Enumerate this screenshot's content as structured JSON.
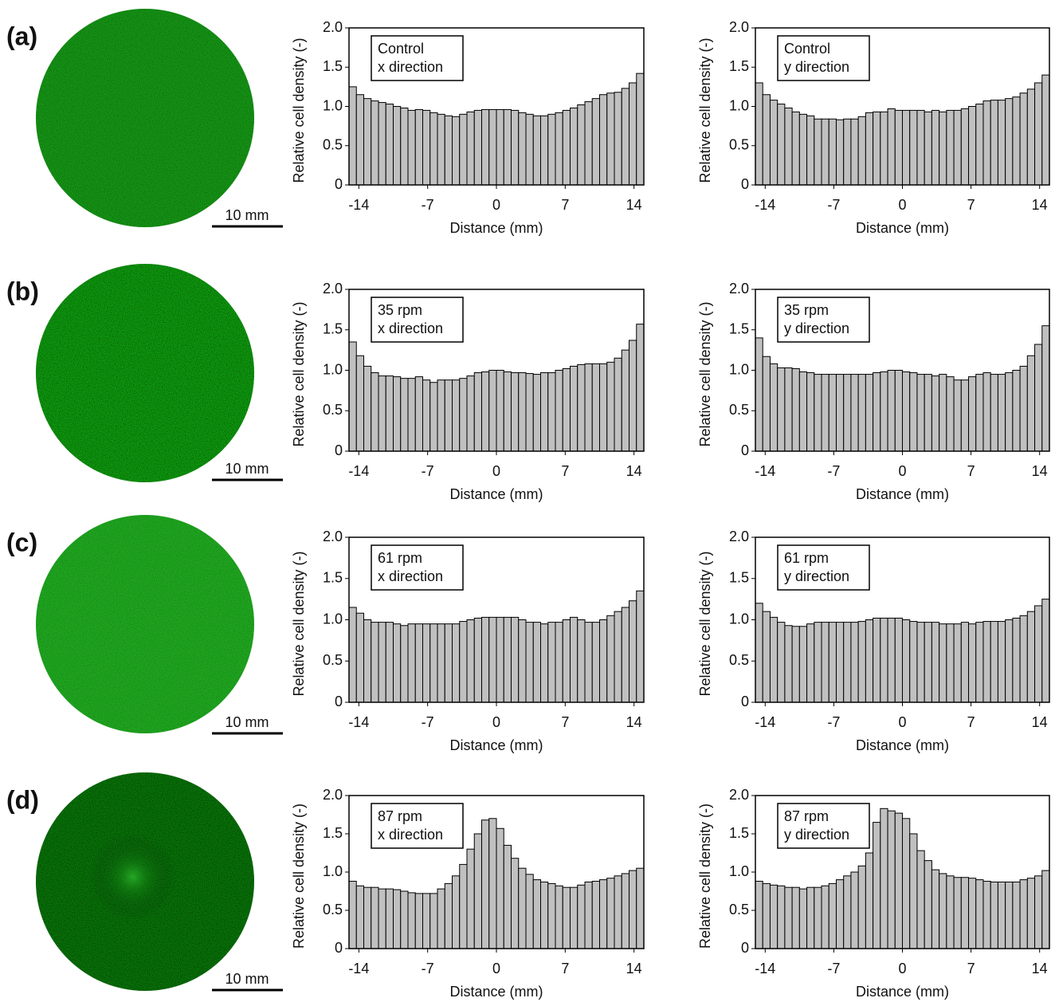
{
  "panels": [
    {
      "label": "(a)",
      "scale_bar": "10 mm"
    },
    {
      "label": "(b)",
      "scale_bar": "10 mm"
    },
    {
      "label": "(c)",
      "scale_bar": "10 mm"
    },
    {
      "label": "(d)",
      "scale_bar": "10 mm"
    }
  ],
  "chart_data": [
    {
      "type": "histogram",
      "annotation": [
        "Control",
        "x direction"
      ],
      "xlabel": "Distance (mm)",
      "ylabel": "Relative cell density (-)",
      "color": "#c0c0c0",
      "bins": [
        -15,
        -14.25,
        -13.5,
        -12.75,
        -12,
        -11.25,
        -10.5,
        -9.75,
        -9,
        -8.25,
        -7.5,
        -6.75,
        -6,
        -5.25,
        -4.5,
        -3.75,
        -3,
        -2.25,
        -1.5,
        -0.75,
        0,
        0.75,
        1.5,
        2.25,
        3,
        3.75,
        4.5,
        5.25,
        6,
        6.75,
        7.5,
        8.25,
        9,
        9.75,
        10.5,
        11.25,
        12,
        12.75,
        13.5,
        14.25,
        15
      ],
      "values": [
        1.25,
        1.15,
        1.1,
        1.07,
        1.05,
        1.03,
        1.0,
        0.98,
        0.95,
        0.96,
        0.95,
        0.92,
        0.9,
        0.88,
        0.87,
        0.9,
        0.93,
        0.95,
        0.96,
        0.96,
        0.96,
        0.96,
        0.95,
        0.92,
        0.9,
        0.88,
        0.88,
        0.9,
        0.92,
        0.95,
        0.98,
        1.02,
        1.06,
        1.1,
        1.15,
        1.17,
        1.18,
        1.23,
        1.3,
        1.42
      ],
      "xlim": [
        -15,
        15
      ],
      "xticks": [
        -14,
        -7,
        0,
        7,
        14
      ],
      "ylim": [
        0,
        2
      ],
      "yticks": [
        0,
        0.5,
        {
          "value": 1,
          "label": "1.0"
        },
        1.5,
        {
          "value": 2,
          "label": "2.0"
        }
      ]
    },
    {
      "type": "histogram",
      "annotation": [
        "Control",
        "y direction"
      ],
      "xlabel": "Distance (mm)",
      "ylabel": "Relative cell density (-)",
      "color": "#c0c0c0",
      "bins": [
        -15,
        -14.25,
        -13.5,
        -12.75,
        -12,
        -11.25,
        -10.5,
        -9.75,
        -9,
        -8.25,
        -7.5,
        -6.75,
        -6,
        -5.25,
        -4.5,
        -3.75,
        -3,
        -2.25,
        -1.5,
        -0.75,
        0,
        0.75,
        1.5,
        2.25,
        3,
        3.75,
        4.5,
        5.25,
        6,
        6.75,
        7.5,
        8.25,
        9,
        9.75,
        10.5,
        11.25,
        12,
        12.75,
        13.5,
        14.25,
        15
      ],
      "values": [
        1.3,
        1.15,
        1.08,
        1.03,
        0.98,
        0.93,
        0.9,
        0.88,
        0.84,
        0.84,
        0.84,
        0.83,
        0.84,
        0.84,
        0.87,
        0.92,
        0.93,
        0.93,
        0.97,
        0.95,
        0.95,
        0.95,
        0.95,
        0.93,
        0.95,
        0.93,
        0.95,
        0.95,
        0.97,
        1.0,
        1.03,
        1.07,
        1.08,
        1.08,
        1.1,
        1.12,
        1.17,
        1.22,
        1.3,
        1.4
      ],
      "xlim": [
        -15,
        15
      ],
      "xticks": [
        -14,
        -7,
        0,
        7,
        14
      ],
      "ylim": [
        0,
        2
      ],
      "yticks": [
        0,
        0.5,
        {
          "value": 1,
          "label": "1.0"
        },
        1.5,
        {
          "value": 2,
          "label": "2.0"
        }
      ]
    },
    {
      "type": "histogram",
      "annotation": [
        "35 rpm",
        "x direction"
      ],
      "xlabel": "Distance (mm)",
      "ylabel": "Relative cell density (-)",
      "color": "#c0c0c0",
      "bins": [
        -15,
        -14.25,
        -13.5,
        -12.75,
        -12,
        -11.25,
        -10.5,
        -9.75,
        -9,
        -8.25,
        -7.5,
        -6.75,
        -6,
        -5.25,
        -4.5,
        -3.75,
        -3,
        -2.25,
        -1.5,
        -0.75,
        0,
        0.75,
        1.5,
        2.25,
        3,
        3.75,
        4.5,
        5.25,
        6,
        6.75,
        7.5,
        8.25,
        9,
        9.75,
        10.5,
        11.25,
        12,
        12.75,
        13.5,
        14.25,
        15
      ],
      "values": [
        1.35,
        1.18,
        1.05,
        0.97,
        0.93,
        0.93,
        0.92,
        0.9,
        0.9,
        0.92,
        0.88,
        0.85,
        0.88,
        0.88,
        0.88,
        0.9,
        0.93,
        0.97,
        0.98,
        1.0,
        1.0,
        0.98,
        0.97,
        0.97,
        0.96,
        0.95,
        0.97,
        0.97,
        1.0,
        1.02,
        1.05,
        1.07,
        1.08,
        1.08,
        1.08,
        1.1,
        1.15,
        1.25,
        1.37,
        1.57
      ],
      "xlim": [
        -15,
        15
      ],
      "xticks": [
        -14,
        -7,
        0,
        7,
        14
      ],
      "ylim": [
        0,
        2
      ],
      "yticks": [
        0,
        0.5,
        {
          "value": 1,
          "label": "1.0"
        },
        1.5,
        {
          "value": 2,
          "label": "2.0"
        }
      ]
    },
    {
      "type": "histogram",
      "annotation": [
        "35 rpm",
        "y direction"
      ],
      "xlabel": "Distance (mm)",
      "ylabel": "Relative cell density (-)",
      "color": "#c0c0c0",
      "bins": [
        -15,
        -14.25,
        -13.5,
        -12.75,
        -12,
        -11.25,
        -10.5,
        -9.75,
        -9,
        -8.25,
        -7.5,
        -6.75,
        -6,
        -5.25,
        -4.5,
        -3.75,
        -3,
        -2.25,
        -1.5,
        -0.75,
        0,
        0.75,
        1.5,
        2.25,
        3,
        3.75,
        4.5,
        5.25,
        6,
        6.75,
        7.5,
        8.25,
        9,
        9.75,
        10.5,
        11.25,
        12,
        12.75,
        13.5,
        14.25,
        15
      ],
      "values": [
        1.4,
        1.17,
        1.08,
        1.03,
        1.03,
        1.02,
        0.98,
        0.97,
        0.95,
        0.95,
        0.95,
        0.95,
        0.95,
        0.95,
        0.95,
        0.95,
        0.97,
        0.98,
        1.0,
        1.0,
        0.98,
        0.97,
        0.95,
        0.95,
        0.93,
        0.95,
        0.92,
        0.88,
        0.88,
        0.92,
        0.95,
        0.97,
        0.95,
        0.95,
        0.97,
        1.0,
        1.05,
        1.18,
        1.32,
        1.55
      ],
      "xlim": [
        -15,
        15
      ],
      "xticks": [
        -14,
        -7,
        0,
        7,
        14
      ],
      "ylim": [
        0,
        2
      ],
      "yticks": [
        0,
        0.5,
        {
          "value": 1,
          "label": "1.0"
        },
        1.5,
        {
          "value": 2,
          "label": "2.0"
        }
      ]
    },
    {
      "type": "histogram",
      "annotation": [
        "61 rpm",
        "x direction"
      ],
      "xlabel": "Distance (mm)",
      "ylabel": "Relative cell density (-)",
      "color": "#c0c0c0",
      "bins": [
        -15,
        -14.25,
        -13.5,
        -12.75,
        -12,
        -11.25,
        -10.5,
        -9.75,
        -9,
        -8.25,
        -7.5,
        -6.75,
        -6,
        -5.25,
        -4.5,
        -3.75,
        -3,
        -2.25,
        -1.5,
        -0.75,
        0,
        0.75,
        1.5,
        2.25,
        3,
        3.75,
        4.5,
        5.25,
        6,
        6.75,
        7.5,
        8.25,
        9,
        9.75,
        10.5,
        11.25,
        12,
        12.75,
        13.5,
        14.25,
        15
      ],
      "values": [
        1.15,
        1.08,
        1.0,
        0.97,
        0.97,
        0.97,
        0.95,
        0.93,
        0.95,
        0.95,
        0.95,
        0.95,
        0.95,
        0.95,
        0.95,
        0.98,
        1.0,
        1.02,
        1.03,
        1.03,
        1.03,
        1.03,
        1.03,
        1.0,
        0.97,
        0.97,
        0.95,
        0.97,
        0.97,
        1.0,
        1.03,
        1.0,
        0.97,
        0.97,
        1.0,
        1.05,
        1.1,
        1.15,
        1.23,
        1.35
      ],
      "xlim": [
        -15,
        15
      ],
      "xticks": [
        -14,
        -7,
        0,
        7,
        14
      ],
      "ylim": [
        0,
        2
      ],
      "yticks": [
        0,
        0.5,
        {
          "value": 1,
          "label": "1.0"
        },
        1.5,
        {
          "value": 2,
          "label": "2.0"
        }
      ]
    },
    {
      "type": "histogram",
      "annotation": [
        "61 rpm",
        "y direction"
      ],
      "xlabel": "Distance (mm)",
      "ylabel": "Relative cell density (-)",
      "color": "#c0c0c0",
      "bins": [
        -15,
        -14.25,
        -13.5,
        -12.75,
        -12,
        -11.25,
        -10.5,
        -9.75,
        -9,
        -8.25,
        -7.5,
        -6.75,
        -6,
        -5.25,
        -4.5,
        -3.75,
        -3,
        -2.25,
        -1.5,
        -0.75,
        0,
        0.75,
        1.5,
        2.25,
        3,
        3.75,
        4.5,
        5.25,
        6,
        6.75,
        7.5,
        8.25,
        9,
        9.75,
        10.5,
        11.25,
        12,
        12.75,
        13.5,
        14.25,
        15
      ],
      "values": [
        1.2,
        1.1,
        1.03,
        0.97,
        0.93,
        0.92,
        0.92,
        0.95,
        0.97,
        0.97,
        0.97,
        0.97,
        0.97,
        0.97,
        0.98,
        1.0,
        1.02,
        1.02,
        1.02,
        1.02,
        1.0,
        0.98,
        0.97,
        0.97,
        0.97,
        0.95,
        0.95,
        0.95,
        0.97,
        0.95,
        0.97,
        0.98,
        0.98,
        0.98,
        1.0,
        1.02,
        1.05,
        1.1,
        1.17,
        1.25
      ],
      "xlim": [
        -15,
        15
      ],
      "xticks": [
        -14,
        -7,
        0,
        7,
        14
      ],
      "ylim": [
        0,
        2
      ],
      "yticks": [
        0,
        0.5,
        {
          "value": 1,
          "label": "1.0"
        },
        1.5,
        {
          "value": 2,
          "label": "2.0"
        }
      ]
    },
    {
      "type": "histogram",
      "annotation": [
        "87 rpm",
        "x direction"
      ],
      "xlabel": "Distance (mm)",
      "ylabel": "Relative cell density (-)",
      "color": "#c0c0c0",
      "bins": [
        -15,
        -14.25,
        -13.5,
        -12.75,
        -12,
        -11.25,
        -10.5,
        -9.75,
        -9,
        -8.25,
        -7.5,
        -6.75,
        -6,
        -5.25,
        -4.5,
        -3.75,
        -3,
        -2.25,
        -1.5,
        -0.75,
        0,
        0.75,
        1.5,
        2.25,
        3,
        3.75,
        4.5,
        5.25,
        6,
        6.75,
        7.5,
        8.25,
        9,
        9.75,
        10.5,
        11.25,
        12,
        12.75,
        13.5,
        14.25,
        15
      ],
      "values": [
        0.88,
        0.82,
        0.8,
        0.8,
        0.78,
        0.78,
        0.77,
        0.75,
        0.73,
        0.72,
        0.72,
        0.72,
        0.78,
        0.85,
        0.95,
        1.1,
        1.3,
        1.5,
        1.68,
        1.7,
        1.57,
        1.35,
        1.18,
        1.05,
        0.97,
        0.9,
        0.87,
        0.85,
        0.82,
        0.8,
        0.8,
        0.83,
        0.87,
        0.88,
        0.9,
        0.92,
        0.95,
        0.98,
        1.02,
        1.05
      ],
      "xlim": [
        -15,
        15
      ],
      "xticks": [
        -14,
        -7,
        0,
        7,
        14
      ],
      "ylim": [
        0,
        2
      ],
      "yticks": [
        0,
        0.5,
        {
          "value": 1,
          "label": "1.0"
        },
        1.5,
        {
          "value": 2,
          "label": "2.0"
        }
      ]
    },
    {
      "type": "histogram",
      "annotation": [
        "87 rpm",
        "y direction"
      ],
      "xlabel": "Distance (mm)",
      "ylabel": "Relative cell density (-)",
      "color": "#c0c0c0",
      "bins": [
        -15,
        -14.25,
        -13.5,
        -12.75,
        -12,
        -11.25,
        -10.5,
        -9.75,
        -9,
        -8.25,
        -7.5,
        -6.75,
        -6,
        -5.25,
        -4.5,
        -3.75,
        -3,
        -2.25,
        -1.5,
        -0.75,
        0,
        0.75,
        1.5,
        2.25,
        3,
        3.75,
        4.5,
        5.25,
        6,
        6.75,
        7.5,
        8.25,
        9,
        9.75,
        10.5,
        11.25,
        12,
        12.75,
        13.5,
        14.25,
        15
      ],
      "values": [
        0.88,
        0.85,
        0.83,
        0.82,
        0.8,
        0.8,
        0.78,
        0.8,
        0.8,
        0.82,
        0.85,
        0.9,
        0.95,
        1.0,
        1.08,
        1.25,
        1.65,
        1.83,
        1.8,
        1.77,
        1.7,
        1.5,
        1.28,
        1.15,
        1.03,
        0.98,
        0.95,
        0.93,
        0.93,
        0.92,
        0.9,
        0.88,
        0.87,
        0.87,
        0.87,
        0.87,
        0.9,
        0.92,
        0.95,
        1.02
      ],
      "xlim": [
        -15,
        15
      ],
      "xticks": [
        -14,
        -7,
        0,
        7,
        14
      ],
      "ylim": [
        0,
        2
      ],
      "yticks": [
        0,
        0.5,
        {
          "value": 1,
          "label": "1.0"
        },
        1.5,
        {
          "value": 2,
          "label": "2.0"
        }
      ]
    }
  ]
}
